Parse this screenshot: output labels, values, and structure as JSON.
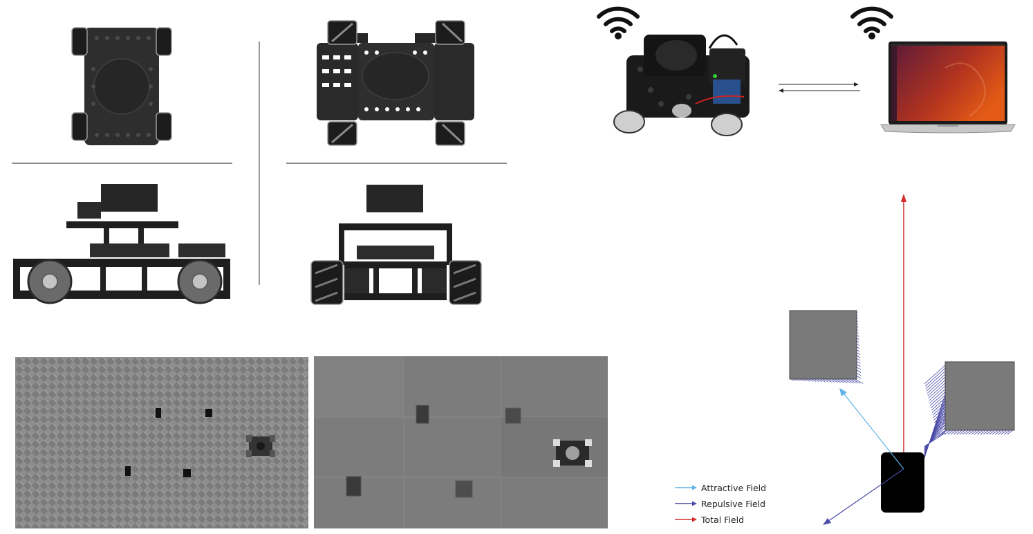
{
  "legend": {
    "attractive": "Attractive Field",
    "repulsive": "Repulsive Field",
    "total": "Total Field"
  },
  "colors": {
    "attractive": "#5fb3e6",
    "repulsive": "#4a4aa8",
    "total": "#d42a2a",
    "obstacle": "#7a7a7a",
    "robot_body": "#000000",
    "sim_floor": "#8e8e8e",
    "real_floor": "#7c7c7c"
  },
  "icons": [
    "wifi-icon",
    "wifi-icon",
    "robot-photo",
    "laptop-icon"
  ]
}
